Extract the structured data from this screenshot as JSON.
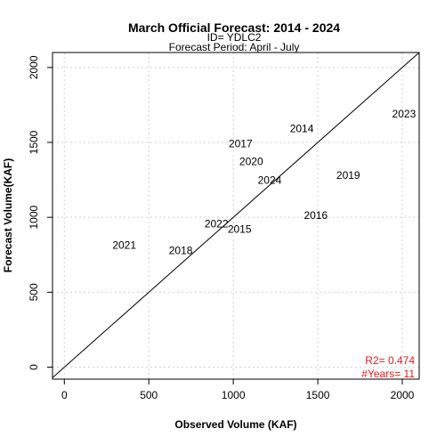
{
  "chart_data": {
    "type": "scatter",
    "title": "March Official Forecast: 2014 - 2024",
    "subtitle_1": "ID= YDLC2",
    "subtitle_2": "Forecast Period:  April - July",
    "xlabel": "Observed Volume (KAF)",
    "ylabel": "Forecast Volume(KAF)",
    "xlim": [
      -70,
      2100
    ],
    "ylim": [
      -80,
      2100
    ],
    "xticks": [
      0,
      500,
      1000,
      1500,
      2000
    ],
    "yticks": [
      0,
      500,
      1000,
      1500,
      2000
    ],
    "grid": true,
    "reference_line": "1:1",
    "points": [
      {
        "label": "2014",
        "x": 1405,
        "y": 1592
      },
      {
        "label": "2015",
        "x": 1037,
        "y": 922
      },
      {
        "label": "2016",
        "x": 1488,
        "y": 1013
      },
      {
        "label": "2017",
        "x": 1043,
        "y": 1490
      },
      {
        "label": "2018",
        "x": 689,
        "y": 778
      },
      {
        "label": "2019",
        "x": 1680,
        "y": 1280
      },
      {
        "label": "2020",
        "x": 1106,
        "y": 1372
      },
      {
        "label": "2021",
        "x": 355,
        "y": 815
      },
      {
        "label": "2022",
        "x": 900,
        "y": 958
      },
      {
        "label": "2023",
        "x": 2010,
        "y": 1690
      },
      {
        "label": "2024",
        "x": 1215,
        "y": 1249
      }
    ],
    "stats": {
      "r2": "R2=  0.474",
      "years": "#Years=  11",
      "color": "#e41a1c"
    }
  }
}
